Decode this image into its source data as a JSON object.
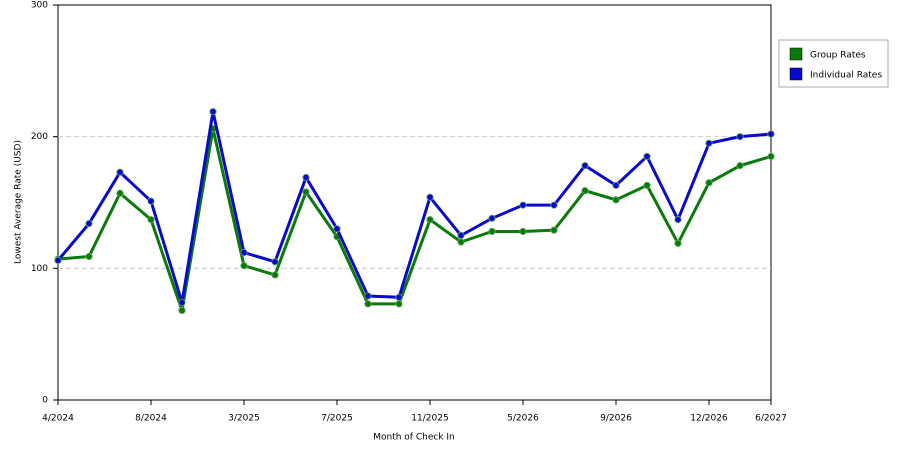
{
  "chart_data": {
    "type": "line",
    "x_label": "Month of Check In",
    "y_label": "Lowest Average Rate (USD)",
    "categories": [
      "4/2024",
      null,
      null,
      "8/2024",
      null,
      null,
      "3/2025",
      null,
      null,
      "7/2025",
      null,
      null,
      "11/2025",
      null,
      null,
      "5/2026",
      null,
      null,
      "9/2026",
      null,
      null,
      "12/2026",
      null,
      "6/2027"
    ],
    "series": [
      {
        "name": "Group Rates",
        "color": "#0a7a0a",
        "values": [
          107,
          109,
          157,
          137,
          68,
          206,
          102,
          95,
          158,
          124,
          73,
          73,
          137,
          120,
          128,
          128,
          129,
          159,
          152,
          163,
          119,
          165,
          178,
          185
        ]
      },
      {
        "name": "Individual Rates",
        "color": "#0a0acc",
        "values": [
          106,
          134,
          173,
          151,
          74,
          219,
          112,
          105,
          169,
          130,
          79,
          78,
          154,
          125,
          138,
          148,
          148,
          178,
          163,
          185,
          137,
          195,
          200,
          202
        ]
      }
    ],
    "ylim": [
      0,
      300
    ],
    "yticks": [
      0,
      100,
      200,
      300
    ],
    "grid": true,
    "legend": "right"
  }
}
